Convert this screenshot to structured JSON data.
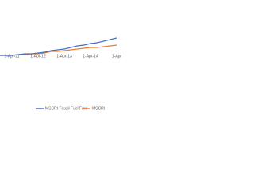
{
  "chart_data": {
    "type": "line",
    "categories": [
      null,
      null,
      "1-Apr-11",
      null,
      null,
      null,
      "1-Apr-12",
      null,
      null,
      null,
      "1-Apr-13",
      null,
      null,
      null,
      "1-Apr-14",
      null,
      null,
      null,
      "1-Apr"
    ],
    "series": [
      {
        "name": "MSCRI Fossil Fuel Free",
        "color": "#4472c4",
        "values": [
          110,
          110,
          110,
          111,
          112,
          112,
          113,
          114,
          116,
          117,
          118,
          120,
          122,
          123,
          125,
          126,
          128,
          130,
          132
        ]
      },
      {
        "name": "MSCRI",
        "color": "#ed7d31",
        "values": [
          110,
          110,
          110,
          111,
          111,
          112,
          112,
          113,
          115,
          115,
          116,
          117,
          118,
          119,
          120,
          120,
          121,
          122,
          123
        ]
      }
    ],
    "ylim": [
      60,
      160
    ],
    "legend": "bottom"
  }
}
